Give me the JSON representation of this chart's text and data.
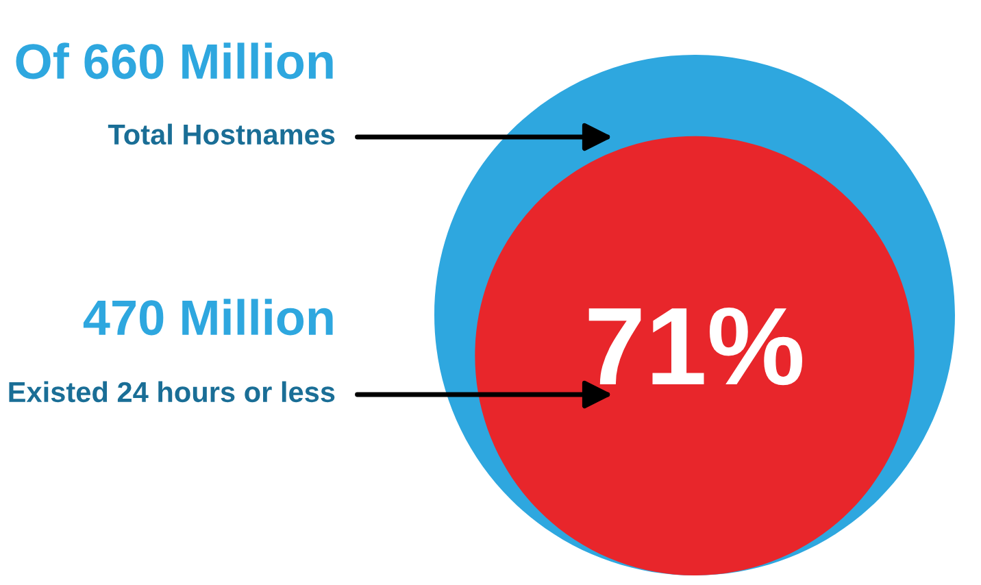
{
  "chart_data": {
    "type": "other",
    "categories": [
      "Total Hostnames",
      "Existed 24 hours or less"
    ],
    "values": [
      660,
      470
    ],
    "value_labels": [
      "Of 660 Million",
      "470 Million"
    ],
    "colors": [
      "#2ea7df",
      "#e8262b"
    ],
    "annotations": [
      "71%"
    ]
  }
}
